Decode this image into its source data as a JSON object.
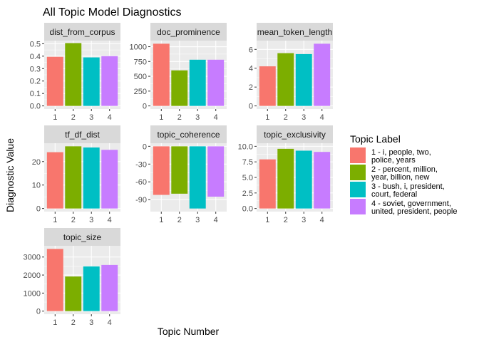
{
  "chart_data": {
    "type": "bar",
    "title": "All Topic Model Diagnostics",
    "xlabel": "Topic Number",
    "ylabel": "Diagnostic Value",
    "categories": [
      "1",
      "2",
      "3",
      "4"
    ],
    "colors": [
      "#F8766D",
      "#7CAE00",
      "#00BFC4",
      "#C77CFF"
    ],
    "legend": {
      "title": "Topic Label",
      "position": "right",
      "items": [
        [
          "1 - i, people, two,",
          "police, years"
        ],
        [
          "2 - percent, million,",
          "year, billion, new"
        ],
        [
          "3 - bush, i, president,",
          "court, federal"
        ],
        [
          "4 - soviet, government,",
          "united, president, people"
        ]
      ]
    },
    "grid": true,
    "panels": [
      {
        "name": "dist_from_corpus",
        "values": [
          0.395,
          0.505,
          0.39,
          0.4
        ],
        "ylim": [
          0,
          0.5
        ],
        "yticks": [
          0.0,
          0.1,
          0.2,
          0.3,
          0.4,
          0.5
        ],
        "yticklabels": [
          "0.0",
          "0.1",
          "0.2",
          "0.3",
          "0.4",
          "0.5"
        ]
      },
      {
        "name": "doc_prominence",
        "values": [
          1050,
          600,
          780,
          780
        ],
        "ylim": [
          0,
          1050
        ],
        "yticks": [
          0,
          250,
          500,
          750,
          1000
        ],
        "yticklabels": [
          "0",
          "250",
          "500",
          "750",
          "1000"
        ]
      },
      {
        "name": "mean_token_length",
        "values": [
          4.2,
          5.6,
          5.5,
          6.6
        ],
        "ylim": [
          0,
          6.6
        ],
        "yticks": [
          0,
          2,
          4,
          6
        ],
        "yticklabels": [
          "0",
          "2",
          "4",
          "6"
        ]
      },
      {
        "name": "tf_df_dist",
        "values": [
          24,
          26.5,
          26,
          25
        ],
        "ylim": [
          0,
          26.5
        ],
        "yticks": [
          0,
          10,
          20
        ],
        "yticklabels": [
          "0",
          "10",
          "20"
        ]
      },
      {
        "name": "topic_coherence",
        "values": [
          -82,
          -80,
          -105,
          -85
        ],
        "ylim": [
          -105,
          0
        ],
        "yticks": [
          0,
          -30,
          -60,
          -90
        ],
        "yticklabels": [
          "0",
          "-30",
          "-60",
          "-90"
        ]
      },
      {
        "name": "topic_exclusivity",
        "values": [
          7.9,
          9.6,
          9.3,
          9.1
        ],
        "ylim": [
          0,
          10
        ],
        "yticks": [
          0,
          2.5,
          5,
          7.5,
          10
        ],
        "yticklabels": [
          "0.0",
          "2.5",
          "5.0",
          "7.5",
          "10.0"
        ]
      },
      {
        "name": "topic_size",
        "values": [
          3450,
          1920,
          2480,
          2560
        ],
        "ylim": [
          0,
          3450
        ],
        "yticks": [
          0,
          1000,
          2000,
          3000
        ],
        "yticklabels": [
          "0",
          "1000",
          "2000",
          "3000"
        ]
      }
    ]
  }
}
